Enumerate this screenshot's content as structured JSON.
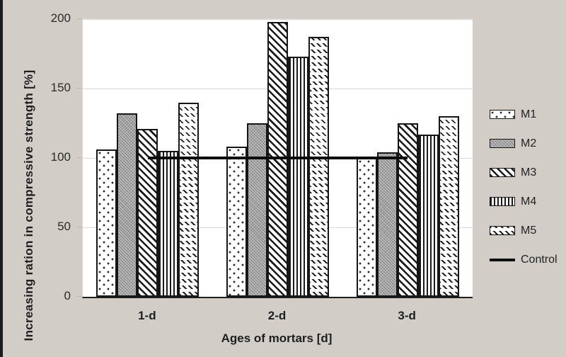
{
  "page": {
    "background_color": "#d3cdc7",
    "edge_strip_color": "#1b1b1b",
    "plot_background": "#ffffff",
    "gridline_color": "#dadada",
    "bar_border_color": "#161616",
    "text_color": "#1f1f1f"
  },
  "chart_data": {
    "type": "bar",
    "title": "",
    "xlabel": "Ages of mortars [d]",
    "ylabel": "Increasing ration in compressive strength [%]",
    "categories": [
      "1-d",
      "2-d",
      "3-d"
    ],
    "series": [
      {
        "name": "M1",
        "pattern": "dots",
        "values": [
          106,
          108,
          100
        ]
      },
      {
        "name": "M2",
        "pattern": "gray-texture",
        "values": [
          132,
          125,
          104
        ]
      },
      {
        "name": "M3",
        "pattern": "diagonal-stripes",
        "values": [
          121,
          198,
          125
        ]
      },
      {
        "name": "M4",
        "pattern": "vertical-stripes",
        "values": [
          105,
          173,
          117
        ]
      },
      {
        "name": "M5",
        "pattern": "diagonal-dashes",
        "values": [
          140,
          187,
          130
        ]
      }
    ],
    "control_line": {
      "name": "Control",
      "value": 100,
      "color": "#0d0d0d"
    },
    "ylim": [
      0,
      200
    ],
    "yticks": [
      0,
      50,
      100,
      150,
      200
    ],
    "grid": true,
    "legend_position": "right"
  }
}
